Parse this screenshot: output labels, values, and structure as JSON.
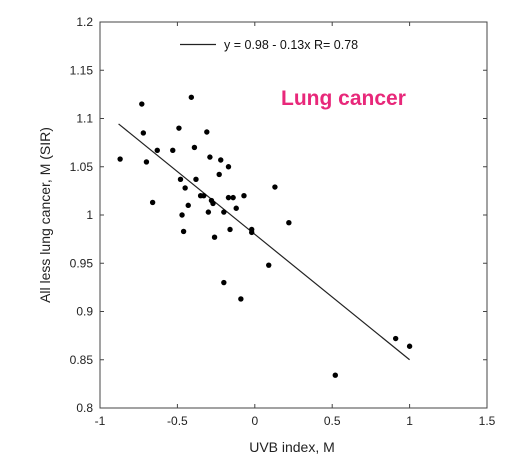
{
  "chart_data": {
    "type": "scatter",
    "title": "",
    "annotation": "Lung cancer",
    "xlabel": "UVB index, M",
    "ylabel": "All less lung cancer, M (SIR)",
    "xlim": [
      -1,
      1.5
    ],
    "ylim": [
      0.8,
      1.2
    ],
    "x_ticks": [
      "-1",
      "-0.5",
      "0",
      "0.5",
      "1",
      "1.5"
    ],
    "y_ticks": [
      "0.8",
      "0.85",
      "0.9",
      "0.95",
      "1",
      "1.05",
      "1.1",
      "1.15",
      "1.2"
    ],
    "legend": {
      "text": "y = 0.98 - 0.13x   R= 0.78",
      "placement": "top-center"
    },
    "fit_line": {
      "intercept": 0.98,
      "slope": -0.13,
      "x_range": [
        -0.88,
        1.0
      ]
    },
    "points": [
      {
        "x": -0.87,
        "y": 1.058
      },
      {
        "x": -0.73,
        "y": 1.115
      },
      {
        "x": -0.72,
        "y": 1.085
      },
      {
        "x": -0.7,
        "y": 1.055
      },
      {
        "x": -0.66,
        "y": 1.013
      },
      {
        "x": -0.63,
        "y": 1.067
      },
      {
        "x": -0.53,
        "y": 1.067
      },
      {
        "x": -0.49,
        "y": 1.09
      },
      {
        "x": -0.48,
        "y": 1.037
      },
      {
        "x": -0.47,
        "y": 1.0
      },
      {
        "x": -0.46,
        "y": 0.983
      },
      {
        "x": -0.45,
        "y": 1.028
      },
      {
        "x": -0.43,
        "y": 1.01
      },
      {
        "x": -0.41,
        "y": 1.122
      },
      {
        "x": -0.39,
        "y": 1.07
      },
      {
        "x": -0.38,
        "y": 1.037
      },
      {
        "x": -0.35,
        "y": 1.02
      },
      {
        "x": -0.33,
        "y": 1.02
      },
      {
        "x": -0.31,
        "y": 1.086
      },
      {
        "x": -0.3,
        "y": 1.003
      },
      {
        "x": -0.29,
        "y": 1.06
      },
      {
        "x": -0.28,
        "y": 1.015
      },
      {
        "x": -0.27,
        "y": 1.012
      },
      {
        "x": -0.26,
        "y": 0.977
      },
      {
        "x": -0.23,
        "y": 1.042
      },
      {
        "x": -0.22,
        "y": 1.057
      },
      {
        "x": -0.2,
        "y": 1.003
      },
      {
        "x": -0.2,
        "y": 0.93
      },
      {
        "x": -0.17,
        "y": 1.05
      },
      {
        "x": -0.17,
        "y": 1.018
      },
      {
        "x": -0.16,
        "y": 0.985
      },
      {
        "x": -0.14,
        "y": 1.018
      },
      {
        "x": -0.12,
        "y": 1.007
      },
      {
        "x": -0.09,
        "y": 0.913
      },
      {
        "x": -0.07,
        "y": 1.02
      },
      {
        "x": -0.02,
        "y": 0.985
      },
      {
        "x": -0.02,
        "y": 0.982
      },
      {
        "x": 0.09,
        "y": 0.948
      },
      {
        "x": 0.13,
        "y": 1.029
      },
      {
        "x": 0.22,
        "y": 0.992
      },
      {
        "x": 0.52,
        "y": 0.834
      },
      {
        "x": 0.91,
        "y": 0.872
      },
      {
        "x": 1.0,
        "y": 0.864
      }
    ]
  },
  "colors": {
    "annotation": "#e8287a",
    "axis": "#444444",
    "marker": "#000000",
    "fit_line": "#222222"
  }
}
